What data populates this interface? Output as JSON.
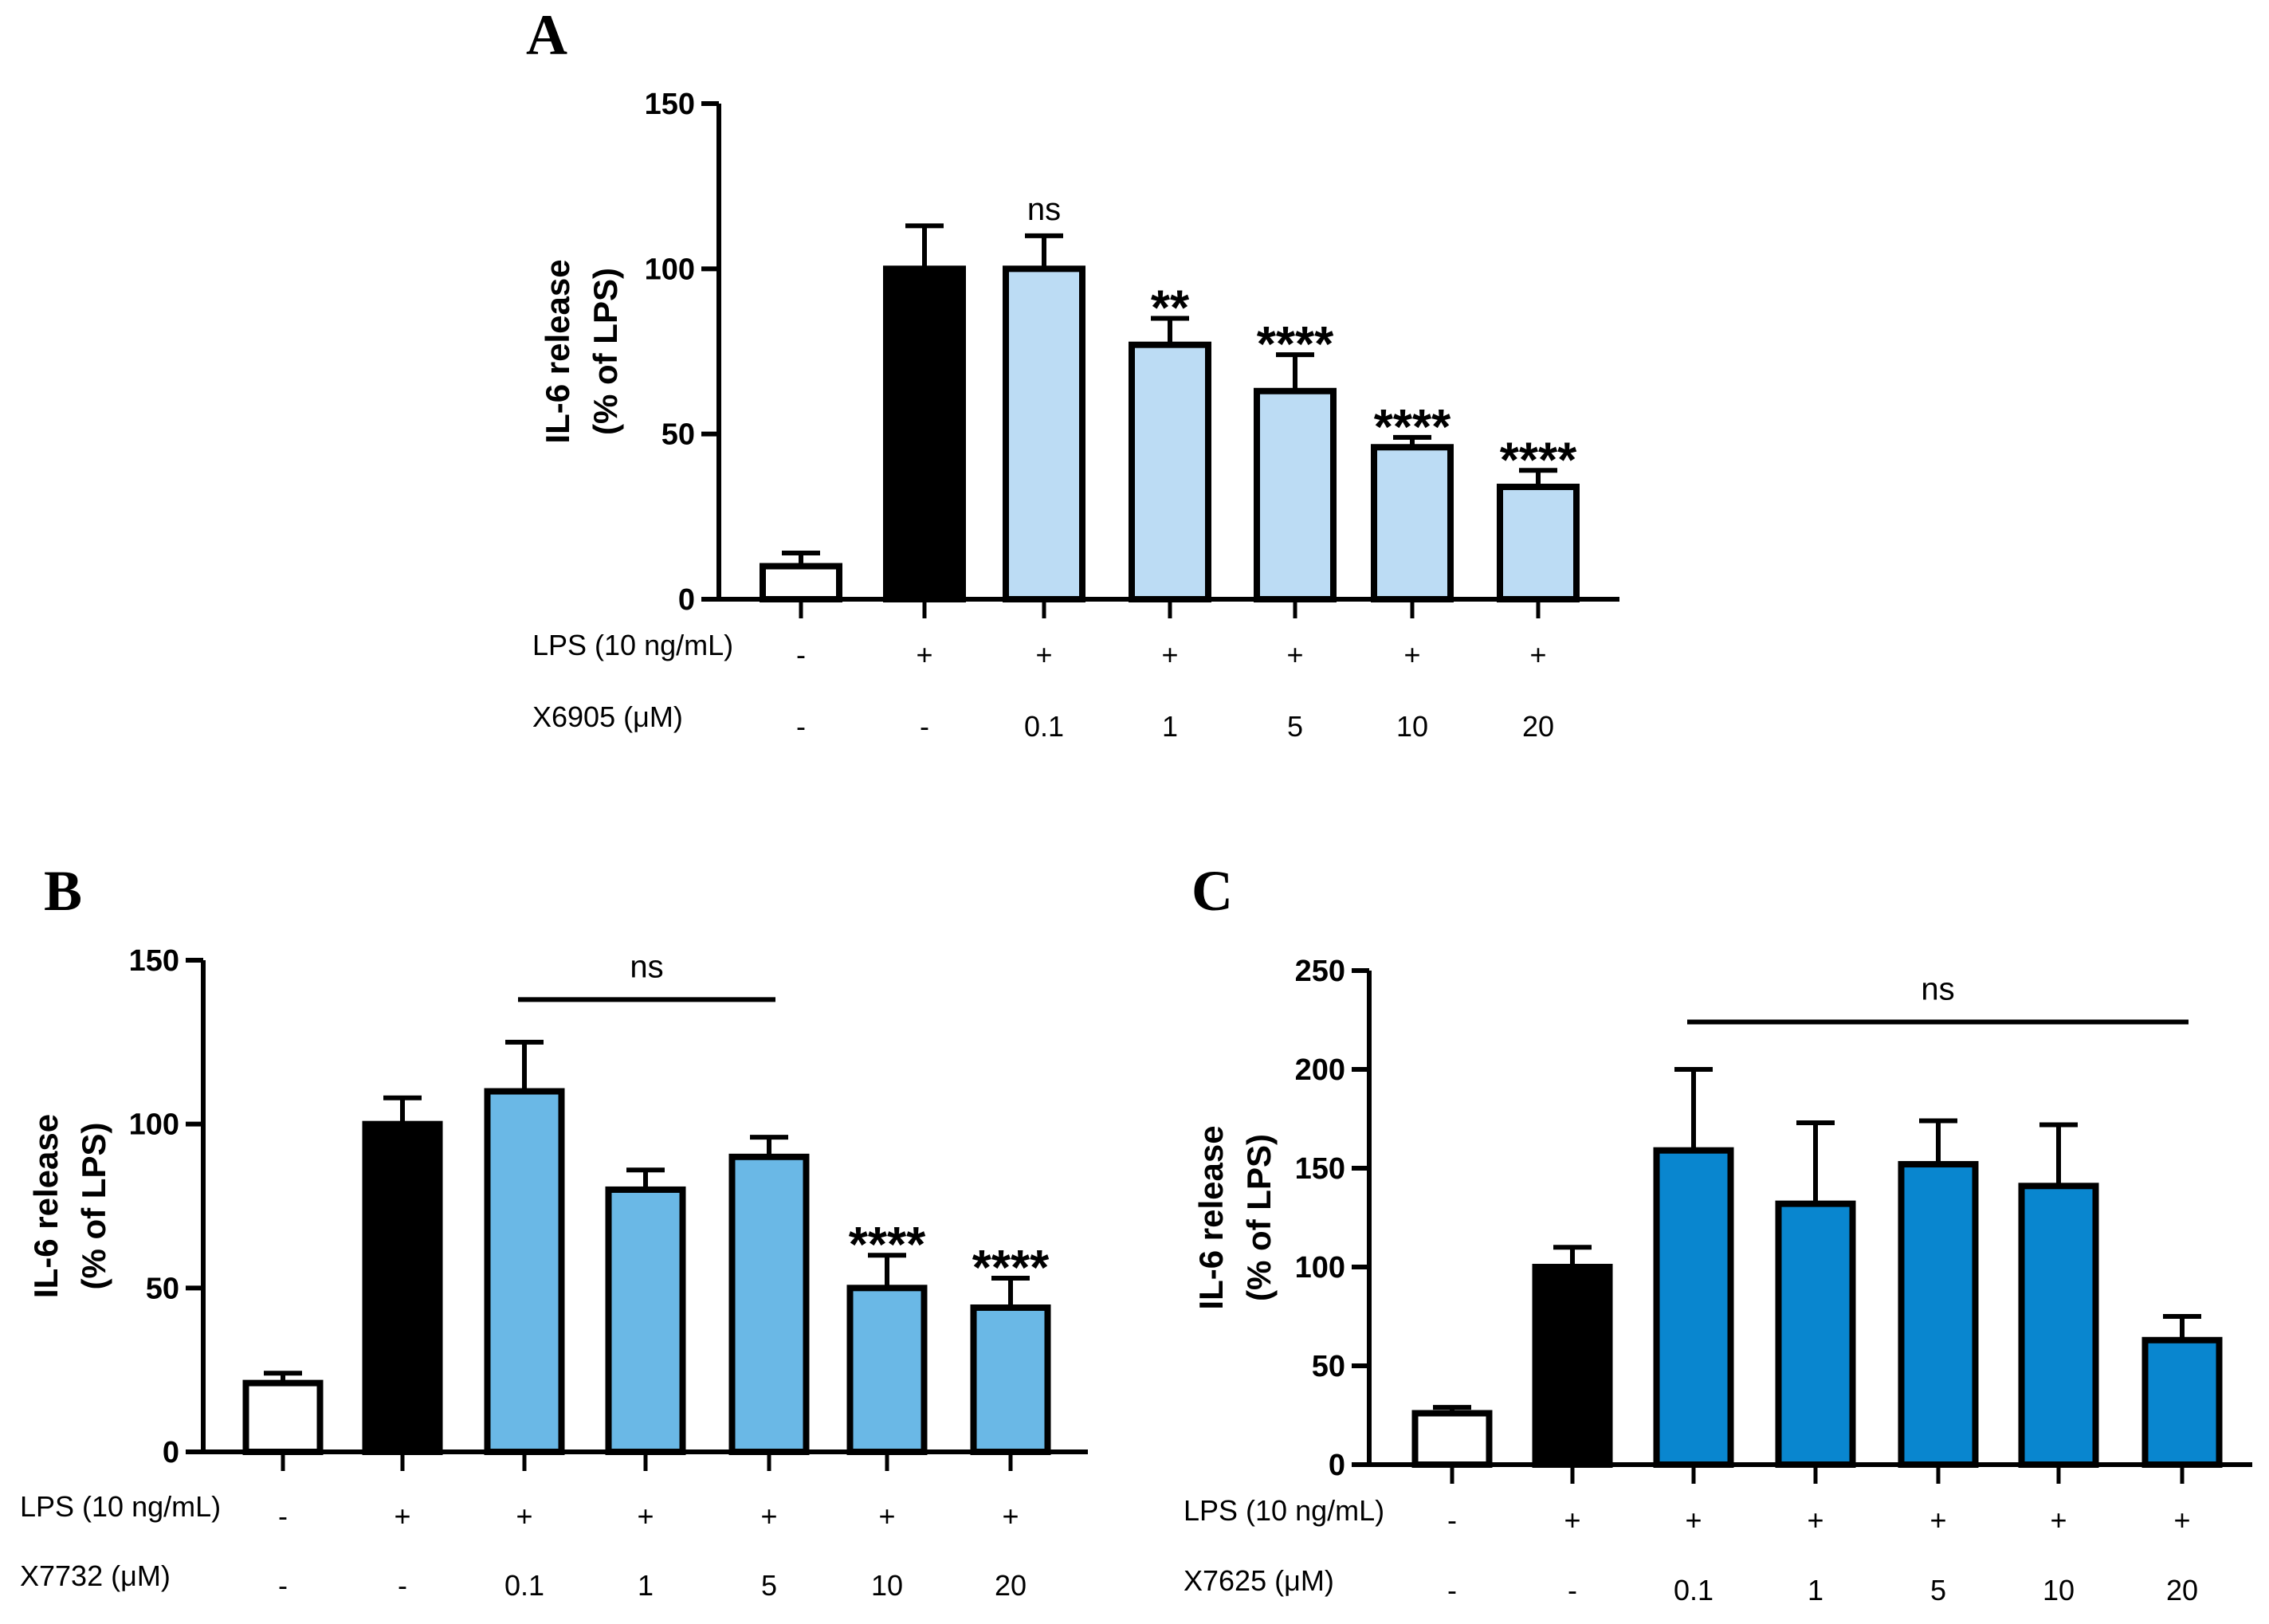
{
  "chart_data": [
    {
      "panel": "A",
      "type": "bar",
      "ylabel": [
        "IL-6 release",
        "(% of LPS)"
      ],
      "ylim": [
        0,
        150
      ],
      "yticks": [
        0,
        50,
        100,
        150
      ],
      "values": [
        10,
        100,
        100,
        77,
        63,
        46,
        34
      ],
      "errors": [
        4,
        13,
        10,
        8,
        11,
        3,
        5
      ],
      "colors": [
        "#ffffff",
        "#000000",
        "#bcdcf4",
        "#bcdcf4",
        "#bcdcf4",
        "#bcdcf4",
        "#bcdcf4"
      ],
      "rows": [
        {
          "label": "LPS (10 ng/mL)",
          "values": [
            "-",
            "+",
            "+",
            "+",
            "+",
            "+",
            "+"
          ]
        },
        {
          "label": "X6905 (μM)",
          "values": [
            "-",
            "-",
            "0.1",
            "1",
            "5",
            "10",
            "20"
          ]
        }
      ],
      "annotations": [
        {
          "bar": 2,
          "text": "ns",
          "kind": "ns"
        },
        {
          "bar": 3,
          "text": "**",
          "kind": "stars"
        },
        {
          "bar": 4,
          "text": "****",
          "kind": "stars"
        },
        {
          "bar": 5,
          "text": "****",
          "kind": "stars"
        },
        {
          "bar": 6,
          "text": "****",
          "kind": "stars"
        }
      ],
      "brackets": []
    },
    {
      "panel": "B",
      "type": "bar",
      "ylabel": [
        "IL-6 release",
        "(% of LPS)"
      ],
      "ylim": [
        0,
        150
      ],
      "yticks": [
        0,
        50,
        100,
        150
      ],
      "values": [
        21,
        100,
        110,
        80,
        90,
        50,
        44
      ],
      "errors": [
        3,
        8,
        15,
        6,
        6,
        10,
        9
      ],
      "colors": [
        "#ffffff",
        "#000000",
        "#6ab8e6",
        "#6ab8e6",
        "#6ab8e6",
        "#6ab8e6",
        "#6ab8e6"
      ],
      "rows": [
        {
          "label": "LPS (10 ng/mL)",
          "values": [
            "-",
            "+",
            "+",
            "+",
            "+",
            "+",
            "+"
          ]
        },
        {
          "label": "X7732 (μM)",
          "values": [
            "-",
            "-",
            "0.1",
            "1",
            "5",
            "10",
            "20"
          ]
        }
      ],
      "annotations": [
        {
          "bar": 5,
          "text": "****",
          "kind": "stars"
        },
        {
          "bar": 6,
          "text": "****",
          "kind": "stars"
        }
      ],
      "brackets": [
        {
          "from": 2,
          "to": 4,
          "value": 138,
          "text": "ns"
        }
      ]
    },
    {
      "panel": "C",
      "type": "bar",
      "ylabel": [
        "IL-6 release",
        "(% of LPS)"
      ],
      "ylim": [
        0,
        250
      ],
      "yticks": [
        0,
        50,
        100,
        150,
        200,
        250
      ],
      "values": [
        26,
        100,
        159,
        132,
        152,
        141,
        63
      ],
      "errors": [
        3,
        10,
        41,
        41,
        22,
        31,
        12
      ],
      "colors": [
        "#ffffff",
        "#000000",
        "#0986cf",
        "#0986cf",
        "#0986cf",
        "#0986cf",
        "#0986cf"
      ],
      "rows": [
        {
          "label": "LPS (10 ng/mL)",
          "values": [
            "-",
            "+",
            "+",
            "+",
            "+",
            "+",
            "+"
          ]
        },
        {
          "label": "X7625 (μM)",
          "values": [
            "-",
            "-",
            "0.1",
            "1",
            "5",
            "10",
            "20"
          ]
        }
      ],
      "annotations": [],
      "brackets": [
        {
          "from": 2,
          "to": 6,
          "value": 224,
          "text": "ns"
        }
      ]
    }
  ]
}
